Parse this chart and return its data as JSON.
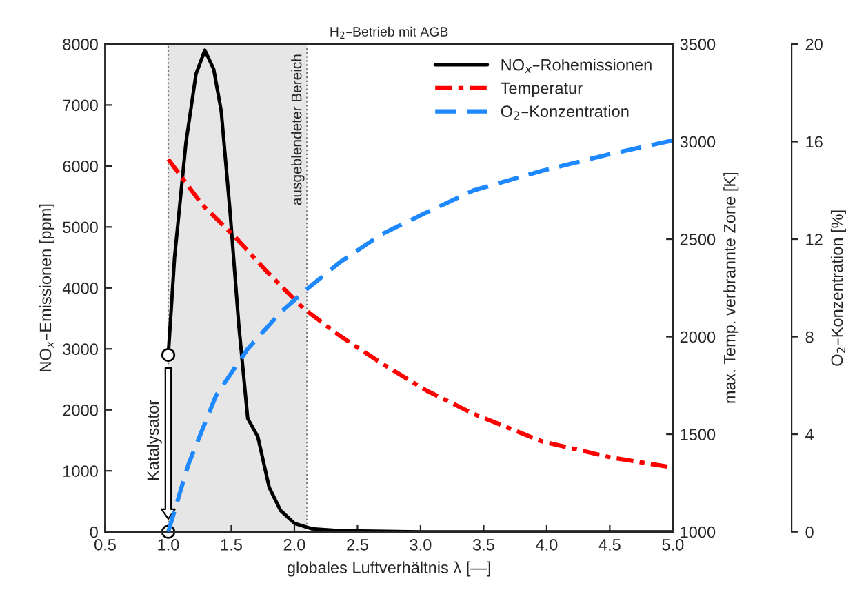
{
  "chart_data": {
    "type": "line",
    "title": "H$_{2}$–Betrieb mit AGB",
    "xlabel": "globales Luftverhältnis λ [—]",
    "ylabel": "NO$_{x}$–Emissionen [ppm]",
    "y2label": "max. Temp. verbrannte Zone [K]",
    "y3label": "O$_{2}$–Konzentration [%]",
    "xlim": [
      0.5,
      5.0
    ],
    "xticks": [
      0.5,
      {
        "value": 1,
        "label": "1.0"
      },
      1.5,
      {
        "value": 2,
        "label": "2.0"
      },
      2.5,
      {
        "value": 3,
        "label": "3.0"
      },
      3.5,
      {
        "value": 4,
        "label": "4.0"
      },
      4.5,
      {
        "value": 5,
        "label": "5.0"
      }
    ],
    "ylim": [
      0,
      8000
    ],
    "yticks": [
      0,
      1000,
      2000,
      3000,
      4000,
      5000,
      6000,
      7000,
      8000
    ],
    "y2lim": [
      1000,
      3500
    ],
    "y2ticks": [
      1000,
      1500,
      2000,
      2500,
      3000,
      3500
    ],
    "y3lim": [
      0,
      20
    ],
    "y3ticks": [
      0,
      4,
      8,
      12,
      16,
      20
    ],
    "grid": false,
    "legend": "top right",
    "series": [
      {
        "name": "NO$_{x}$–Rohemissionen",
        "color": "#000000",
        "line_style": "solid",
        "x": [
          1.0,
          1.05,
          1.14,
          1.22,
          1.29,
          1.36,
          1.42,
          1.49,
          1.56,
          1.63,
          1.71,
          1.8,
          1.89,
          2.0,
          2.14,
          2.36,
          3.0,
          5.0
        ],
        "values": [
          2900,
          4500,
          6380,
          7510,
          7900,
          7590,
          6900,
          5250,
          3370,
          1860,
          1560,
          730,
          350,
          140,
          50,
          20,
          0,
          0
        ]
      },
      {
        "name": "Temperatur",
        "color": "#ff0000",
        "line_style": "dashdot",
        "axis": "y2",
        "x": [
          1.0,
          1.27,
          1.53,
          1.78,
          2.07,
          2.36,
          2.69,
          3.05,
          3.42,
          3.96,
          4.51,
          4.96
        ],
        "values": [
          2910,
          2676,
          2511,
          2335,
          2146,
          2005,
          1864,
          1723,
          1605,
          1464,
          1381,
          1334
        ]
      },
      {
        "name": "O$_{2}$–Konzentration",
        "color": "#1e88ff",
        "line_style": "dashed",
        "axis": "y3",
        "x": [
          1.0,
          1.16,
          1.38,
          1.63,
          1.89,
          2.11,
          2.36,
          2.69,
          3.05,
          3.42,
          3.96,
          4.51,
          5.0
        ],
        "values": [
          0,
          2.77,
          5.6,
          7.5,
          9.0,
          10.0,
          11.05,
          12.2,
          13.1,
          14.0,
          14.8,
          15.5,
          16.05
        ]
      },
      {
        "type": "scatter",
        "color": "#ffffff",
        "marker": "circle",
        "x": [
          1.0,
          1.0
        ],
        "values": [
          2900,
          0
        ]
      }
    ],
    "bands": [
      {
        "axis": "x",
        "from": 1.0,
        "to": 2.1,
        "label": "ausgeblendeter Bereich",
        "color": "#e6e6e6"
      }
    ],
    "annotations": [
      {
        "text": "Katalysator",
        "x": 1.0,
        "y": 1500
      }
    ]
  }
}
